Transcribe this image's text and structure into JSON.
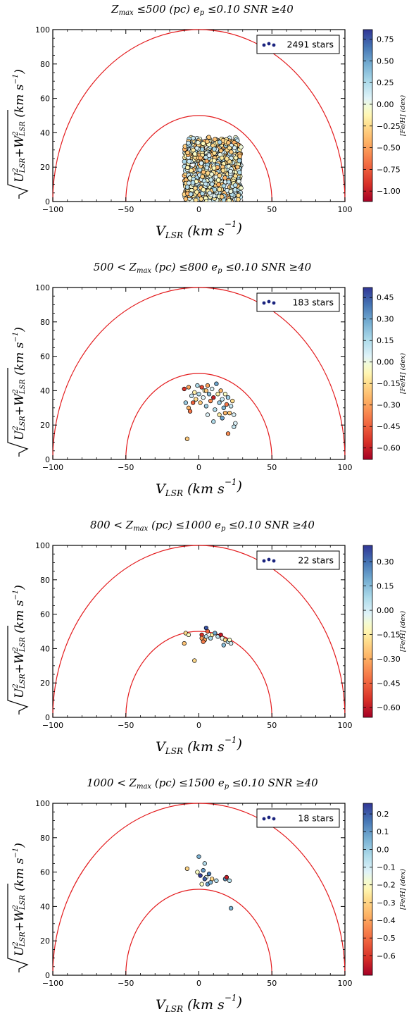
{
  "chart_data": [
    {
      "type": "scatter",
      "title": "Zmax ≤500 (pc) ep ≤0.10 SNR ≥40",
      "xlabel": "V_LSR (km s^-1)",
      "ylabel": "sqrt(U_LSR^2 + W_LSR^2) (km s^-1)",
      "xlim": [
        -100,
        100
      ],
      "ylim": [
        0,
        100
      ],
      "xticks": [
        -100,
        -50,
        0,
        50,
        100
      ],
      "yticks": [
        0,
        20,
        40,
        60,
        80,
        100
      ],
      "xtick_labels": [
        "−100",
        "−50",
        "0",
        "50",
        "100"
      ],
      "ytick_labels": [
        "0",
        "20",
        "40",
        "60",
        "80",
        "100"
      ],
      "legend": {
        "label": "2491 stars",
        "position": "top-right",
        "count": 2491
      },
      "colorbar": {
        "label": "[Fe/H] (dex)",
        "range": [
          -1.12,
          0.86
        ],
        "ticks": [
          0.75,
          0.5,
          0.25,
          0.0,
          -0.25,
          -0.5,
          -0.75,
          -1.0
        ],
        "tick_labels": [
          "0.75",
          "0.50",
          "0.25",
          "0.00",
          "−0.25",
          "−0.50",
          "−0.75",
          "−1.00"
        ]
      },
      "circles": [
        50,
        100
      ],
      "points": [],
      "cloud": {
        "x_range": [
          -10,
          29
        ],
        "y_max": 38,
        "count": 2491
      }
    },
    {
      "type": "scatter",
      "title": "500 < Zmax (pc) ≤800 ep ≤0.10 SNR ≥40",
      "xlabel": "V_LSR (km s^-1)",
      "ylabel": "sqrt(U_LSR^2 + W_LSR^2) (km s^-1)",
      "xlim": [
        -100,
        100
      ],
      "ylim": [
        0,
        100
      ],
      "xticks": [
        -100,
        -50,
        0,
        50,
        100
      ],
      "yticks": [
        0,
        20,
        40,
        60,
        80,
        100
      ],
      "xtick_labels": [
        "−100",
        "−50",
        "0",
        "50",
        "100"
      ],
      "ytick_labels": [
        "0",
        "20",
        "40",
        "60",
        "80",
        "100"
      ],
      "legend": {
        "label": "183 stars",
        "position": "top-right",
        "count": 183
      },
      "colorbar": {
        "label": "[Fe/H] (dex)",
        "range": [
          -0.68,
          0.52
        ],
        "ticks": [
          0.45,
          0.3,
          0.15,
          0.0,
          -0.15,
          -0.3,
          -0.45,
          -0.6
        ],
        "tick_labels": [
          "0.45",
          "0.30",
          "0.15",
          "0.00",
          "−0.15",
          "−0.30",
          "−0.45",
          "−0.60"
        ]
      },
      "circles": [
        50,
        100
      ],
      "points": [
        [
          -10,
          41,
          -0.55
        ],
        [
          -7,
          42,
          -0.3
        ],
        [
          -9,
          33,
          0.2
        ],
        [
          -7,
          30,
          -0.25
        ],
        [
          -6,
          28,
          -0.4
        ],
        [
          -5,
          37,
          0.1
        ],
        [
          -3,
          39,
          -0.1
        ],
        [
          -2,
          35,
          -0.15
        ],
        [
          0,
          38,
          0.15
        ],
        [
          1,
          33,
          -0.2
        ],
        [
          2,
          42,
          -0.5
        ],
        [
          3,
          36,
          0.05
        ],
        [
          4,
          40,
          -0.05
        ],
        [
          5,
          31,
          0.2
        ],
        [
          6,
          43,
          -0.3
        ],
        [
          7,
          38,
          0.25
        ],
        [
          8,
          34,
          -0.35
        ],
        [
          9,
          41,
          0.05
        ],
        [
          10,
          36,
          -0.6
        ],
        [
          11,
          29,
          0.15
        ],
        [
          12,
          44,
          0.3
        ],
        [
          13,
          38,
          -0.1
        ],
        [
          14,
          33,
          0.2
        ],
        [
          15,
          40,
          -0.25
        ],
        [
          16,
          35,
          0.1
        ],
        [
          17,
          30,
          0.25
        ],
        [
          18,
          38,
          -0.05
        ],
        [
          19,
          32,
          -0.4
        ],
        [
          20,
          36,
          0.2
        ],
        [
          21,
          27,
          -0.2
        ],
        [
          22,
          31,
          0.1
        ],
        [
          23,
          34,
          -0.15
        ],
        [
          24,
          26,
          0.05
        ],
        [
          25,
          21,
          0.05
        ],
        [
          -8,
          12,
          -0.2
        ],
        [
          20,
          15,
          -0.35
        ],
        [
          24,
          19,
          0.1
        ],
        [
          -4,
          33,
          -0.45
        ],
        [
          6,
          26,
          0.05
        ],
        [
          10,
          22,
          0.15
        ],
        [
          14,
          26,
          -0.1
        ],
        [
          16,
          24,
          0.3
        ],
        [
          18,
          27,
          -0.25
        ],
        [
          -1,
          43,
          0.15
        ],
        [
          5,
          40,
          -0.2
        ]
      ]
    },
    {
      "type": "scatter",
      "title": "800 < Zmax (pc) ≤1000 ep ≤0.10 SNR ≥40",
      "xlabel": "V_LSR (km s^-1)",
      "ylabel": "sqrt(U_LSR^2 + W_LSR^2) (km s^-1)",
      "xlim": [
        -100,
        100
      ],
      "ylim": [
        0,
        100
      ],
      "xticks": [
        -100,
        -50,
        0,
        50,
        100
      ],
      "yticks": [
        0,
        20,
        40,
        60,
        80,
        100
      ],
      "xtick_labels": [
        "−100",
        "−50",
        "0",
        "50",
        "100"
      ],
      "ytick_labels": [
        "0",
        "20",
        "40",
        "60",
        "80",
        "100"
      ],
      "legend": {
        "label": "22 stars",
        "position": "top-right",
        "count": 22
      },
      "colorbar": {
        "label": "[Fe/H] (dex)",
        "range": [
          -0.66,
          0.4
        ],
        "ticks": [
          0.3,
          0.15,
          0.0,
          -0.15,
          -0.3,
          -0.45,
          -0.6
        ],
        "tick_labels": [
          "0.30",
          "0.15",
          "0.00",
          "−0.15",
          "−0.30",
          "−0.45",
          "−0.60"
        ]
      },
      "circles": [
        50,
        100
      ],
      "points": [
        [
          -9,
          49,
          -0.2
        ],
        [
          -7,
          48,
          -0.1
        ],
        [
          -10,
          43,
          -0.25
        ],
        [
          -3,
          33,
          -0.2
        ],
        [
          2,
          48,
          -0.55
        ],
        [
          2,
          46,
          -0.35
        ],
        [
          4,
          45,
          -0.3
        ],
        [
          5,
          47,
          0.05
        ],
        [
          5,
          52,
          0.35
        ],
        [
          6,
          50,
          -0.45
        ],
        [
          8,
          46,
          0.1
        ],
        [
          9,
          48,
          -0.15
        ],
        [
          11,
          49,
          0.2
        ],
        [
          13,
          47,
          0.05
        ],
        [
          15,
          48,
          -0.6
        ],
        [
          16,
          46,
          -0.05
        ],
        [
          17,
          42,
          0.15
        ],
        [
          18,
          45,
          -0.2
        ],
        [
          20,
          44,
          0.05
        ],
        [
          21,
          45,
          -0.1
        ],
        [
          22,
          43,
          0.0
        ],
        [
          3,
          44,
          -0.4
        ]
      ]
    },
    {
      "type": "scatter",
      "title": "1000 < Zmax (pc) ≤1500 ep ≤0.10 SNR ≥40",
      "xlabel": "V_LSR (km s^-1)",
      "ylabel": "sqrt(U_LSR^2 + W_LSR^2) (km s^-1)",
      "xlim": [
        -100,
        100
      ],
      "ylim": [
        0,
        100
      ],
      "xticks": [
        -100,
        -50,
        0,
        50,
        100
      ],
      "yticks": [
        0,
        20,
        40,
        60,
        80,
        100
      ],
      "xtick_labels": [
        "−100",
        "−50",
        "0",
        "50",
        "100"
      ],
      "ytick_labels": [
        "0",
        "20",
        "40",
        "60",
        "80",
        "100"
      ],
      "legend": {
        "label": "18 stars",
        "position": "top-right",
        "count": 18
      },
      "colorbar": {
        "label": "[Fe/H] (dex)",
        "range": [
          -0.71,
          0.26
        ],
        "ticks": [
          0.2,
          0.1,
          0.0,
          -0.1,
          -0.2,
          -0.3,
          -0.4,
          -0.5,
          -0.6
        ],
        "tick_labels": [
          "0.2",
          "0.1",
          "0.0",
          "−0.1",
          "−0.2",
          "−0.3",
          "−0.4",
          "−0.5",
          "−0.6"
        ]
      },
      "circles": [
        50,
        100
      ],
      "points": [
        [
          0,
          69,
          0.05
        ],
        [
          -8,
          62,
          -0.3
        ],
        [
          -1,
          60,
          -0.2
        ],
        [
          4,
          65,
          -0.05
        ],
        [
          3,
          61,
          0.1
        ],
        [
          1,
          58,
          0.25
        ],
        [
          5,
          57,
          -0.15
        ],
        [
          7,
          59,
          0.15
        ],
        [
          9,
          56,
          -0.3
        ],
        [
          6,
          53,
          0.1
        ],
        [
          2,
          53,
          -0.2
        ],
        [
          12,
          55,
          -0.05
        ],
        [
          8,
          54,
          0.05
        ],
        [
          18,
          56,
          0.1
        ],
        [
          19,
          57,
          -0.65
        ],
        [
          21,
          55,
          -0.05
        ],
        [
          22,
          39,
          0.05
        ],
        [
          4,
          56,
          0.2
        ]
      ]
    }
  ]
}
